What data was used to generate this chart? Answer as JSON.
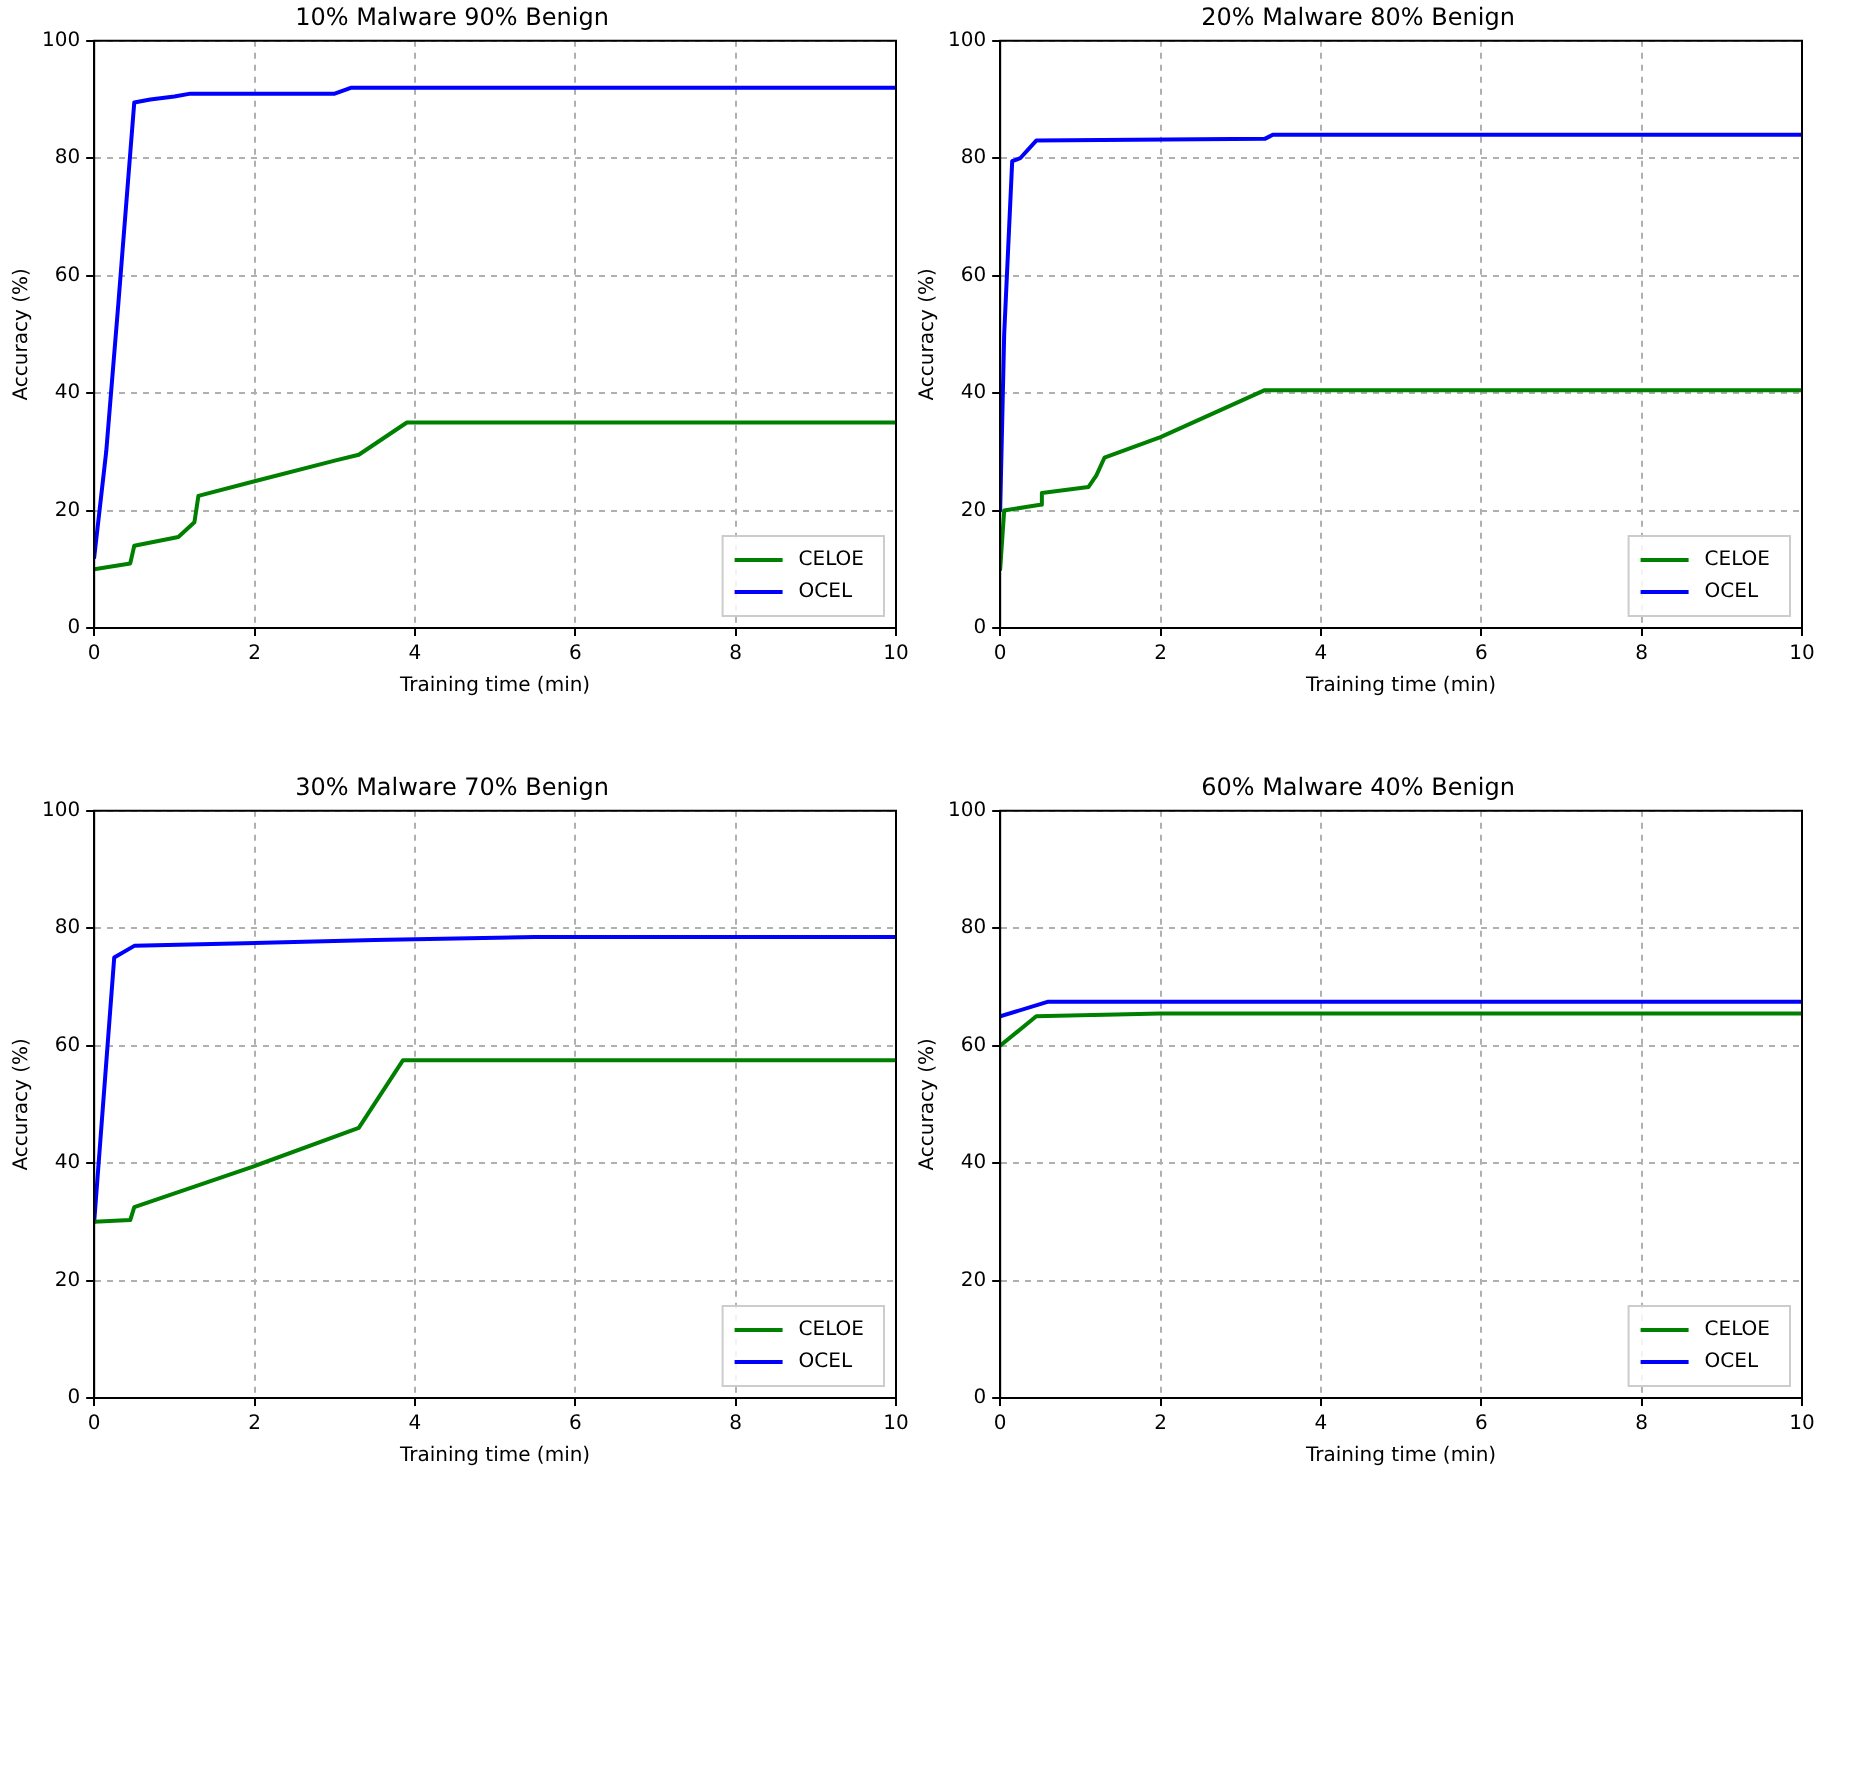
{
  "chart_data": [
    {
      "type": "line",
      "title": "10% Malware 90% Benign",
      "xlabel": "Training time (min)",
      "ylabel": "Accuracy (%)",
      "xlim": [
        0,
        10
      ],
      "xticks": [
        0,
        2,
        4,
        6,
        8,
        10
      ],
      "ylim": [
        0,
        100
      ],
      "yticks": [
        0,
        20,
        40,
        60,
        80,
        100
      ],
      "grid": true,
      "legend": "bottom right",
      "series": [
        {
          "name": "CELOE",
          "color": "#008000",
          "x": [
            0,
            0.45,
            0.5,
            1.05,
            1.25,
            1.3,
            2,
            3,
            3.3,
            3.9,
            10
          ],
          "values": [
            10,
            11,
            14,
            15.5,
            18,
            22.5,
            25,
            28.5,
            29.5,
            35,
            35
          ]
        },
        {
          "name": "OCEL",
          "color": "#0000ff",
          "x": [
            0,
            0.15,
            0.3,
            0.5,
            0.7,
            1.0,
            1.2,
            3.0,
            3.2,
            10
          ],
          "values": [
            12,
            30,
            55,
            89.5,
            90,
            90.5,
            91,
            91,
            92,
            92
          ]
        }
      ]
    },
    {
      "type": "line",
      "title": "20% Malware 80% Benign",
      "xlabel": "Training time (min)",
      "ylabel": "Accuracy (%)",
      "xlim": [
        0,
        10
      ],
      "xticks": [
        0,
        2,
        4,
        6,
        8,
        10
      ],
      "ylim": [
        0,
        100
      ],
      "yticks": [
        0,
        20,
        40,
        60,
        80,
        100
      ],
      "grid": true,
      "legend": "bottom right",
      "series": [
        {
          "name": "CELOE",
          "color": "#008000",
          "x": [
            0,
            0.05,
            0.5,
            0.52,
            1.1,
            1.2,
            1.3,
            2,
            3.3,
            10
          ],
          "values": [
            10,
            20,
            21,
            23,
            24,
            26,
            29,
            32.5,
            40.5,
            40.5
          ]
        },
        {
          "name": "OCEL",
          "color": "#0000ff",
          "x": [
            0,
            0.05,
            0.15,
            0.25,
            0.45,
            3.3,
            3.4,
            10
          ],
          "values": [
            20,
            50,
            79.5,
            80,
            83,
            83.3,
            84,
            84
          ]
        }
      ]
    },
    {
      "type": "line",
      "title": "30% Malware 70% Benign",
      "xlabel": "Training time (min)",
      "ylabel": "Accuracy (%)",
      "xlim": [
        0,
        10
      ],
      "xticks": [
        0,
        2,
        4,
        6,
        8,
        10
      ],
      "ylim": [
        0,
        100
      ],
      "yticks": [
        0,
        20,
        40,
        60,
        80,
        100
      ],
      "grid": true,
      "legend": "bottom right",
      "series": [
        {
          "name": "CELOE",
          "color": "#008000",
          "x": [
            0,
            0.45,
            0.5,
            2,
            3.3,
            3.85,
            10
          ],
          "values": [
            30,
            30.3,
            32.5,
            39.5,
            46,
            57.5,
            57.5
          ]
        },
        {
          "name": "OCEL",
          "color": "#0000ff",
          "x": [
            0,
            0.25,
            0.5,
            3.5,
            5.5,
            10
          ],
          "values": [
            30,
            75,
            77,
            78,
            78.5,
            78.5
          ]
        }
      ]
    },
    {
      "type": "line",
      "title": "60% Malware 40% Benign",
      "xlabel": "Training time (min)",
      "ylabel": "Accuracy (%)",
      "xlim": [
        0,
        10
      ],
      "xticks": [
        0,
        2,
        4,
        6,
        8,
        10
      ],
      "ylim": [
        0,
        100
      ],
      "yticks": [
        0,
        20,
        40,
        60,
        80,
        100
      ],
      "grid": true,
      "legend": "bottom right",
      "series": [
        {
          "name": "CELOE",
          "color": "#008000",
          "x": [
            0,
            0.45,
            2,
            10
          ],
          "values": [
            60,
            65,
            65.5,
            65.5
          ]
        },
        {
          "name": "OCEL",
          "color": "#0000ff",
          "x": [
            0,
            0.6,
            10
          ],
          "values": [
            65,
            67.5,
            67.5
          ]
        }
      ]
    }
  ]
}
